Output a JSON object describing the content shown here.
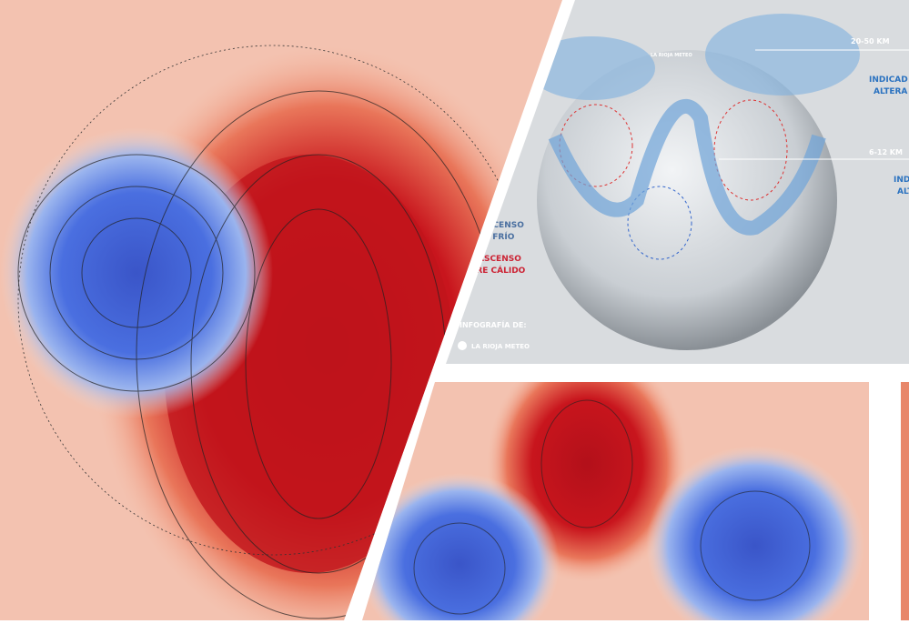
{
  "infographic": {
    "layers": [
      "20-50 KM",
      "6-12 KM"
    ],
    "side_labels": [
      "INDICAD",
      "ALTERA",
      "IND",
      "ALT"
    ],
    "legend": [
      "ASCENSO",
      "E FRÍO",
      "ASCENSO",
      "IRE CÁLIDO"
    ],
    "credit": "INFOGRAFÍA DE:",
    "brand": "LA RIOJA METEO",
    "watermark": "LA RIOJA METEO"
  }
}
